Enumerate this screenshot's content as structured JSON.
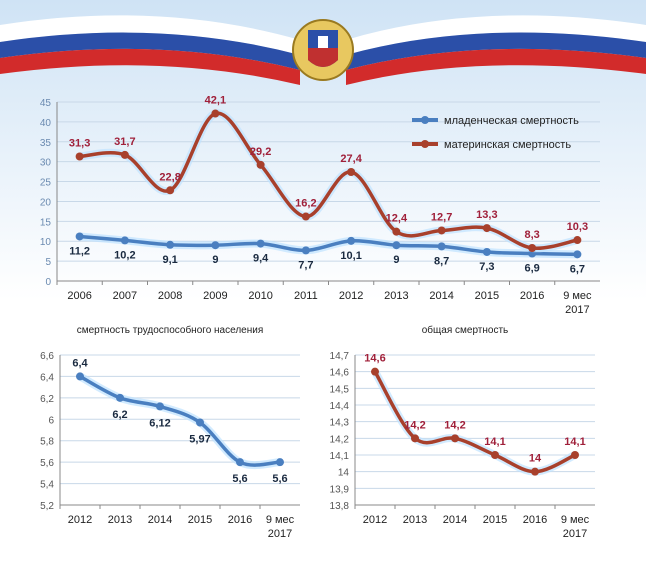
{
  "colors": {
    "blue": "#4a7fc0",
    "red": "#a8402c",
    "red_label": "#a0203a",
    "grid": "#c8d8e8"
  },
  "chart_data": [
    {
      "type": "line",
      "categories": [
        "2006",
        "2007",
        "2008",
        "2009",
        "2010",
        "2011",
        "2012",
        "2013",
        "2014",
        "2015",
        "2016",
        "9 мес|2017"
      ],
      "ylim": [
        0,
        45
      ],
      "yticks": [
        0,
        5,
        10,
        15,
        20,
        25,
        30,
        35,
        40,
        45
      ],
      "grid": true,
      "legend": "top-right",
      "series": [
        {
          "name": "младенческая смертность",
          "color": "blue",
          "values": [
            11.2,
            10.2,
            9.1,
            9,
            9.4,
            7.7,
            10.1,
            9,
            8.7,
            7.3,
            6.9,
            6.7
          ],
          "labels": [
            "11,2",
            "10,2",
            "9,1",
            "9",
            "9,4",
            "7,7",
            "10,1",
            "9",
            "8,7",
            "7,3",
            "6,9",
            "6,7"
          ]
        },
        {
          "name": "материнская смертность",
          "color": "red",
          "values": [
            31.3,
            31.7,
            22.8,
            42.1,
            29.2,
            16.2,
            27.4,
            12.4,
            12.7,
            13.3,
            8.3,
            10.3
          ],
          "labels": [
            "31,3",
            "31,7",
            "22,8",
            "42,1",
            "29,2",
            "16,2",
            "27,4",
            "12,4",
            "12,7",
            "13,3",
            "8,3",
            "10,3"
          ]
        }
      ]
    },
    {
      "type": "line",
      "title": "смертность трудоспособного  населения",
      "categories": [
        "2012",
        "2013",
        "2014",
        "2015",
        "2016",
        "9 мес|2017"
      ],
      "ylim": [
        5.2,
        6.6
      ],
      "yticks": [
        "5,2",
        "5,4",
        "5,6",
        "5,8",
        "6",
        "6,2",
        "6,4",
        "6,6"
      ],
      "grid": true,
      "series": [
        {
          "color": "blue",
          "values": [
            6.4,
            6.2,
            6.12,
            5.97,
            5.6,
            5.6
          ],
          "labels": [
            "6,4",
            "6,2",
            "6,12",
            "5,97",
            "5,6",
            "5,6"
          ]
        }
      ]
    },
    {
      "type": "line",
      "title": "общая смертность",
      "categories": [
        "2012",
        "2013",
        "2014",
        "2015",
        "2016",
        "9 мес|2017"
      ],
      "ylim": [
        13.8,
        14.7
      ],
      "yticks": [
        "13,8",
        "13,9",
        "14",
        "14,1",
        "14,2",
        "14,3",
        "14,4",
        "14,5",
        "14,6",
        "14,7"
      ],
      "grid": true,
      "series": [
        {
          "color": "red",
          "values": [
            14.6,
            14.2,
            14.2,
            14.1,
            14.0,
            14.1
          ],
          "labels": [
            "14,6",
            "14,2",
            "14,2",
            "14,1",
            "14",
            "14,1"
          ]
        }
      ]
    }
  ]
}
